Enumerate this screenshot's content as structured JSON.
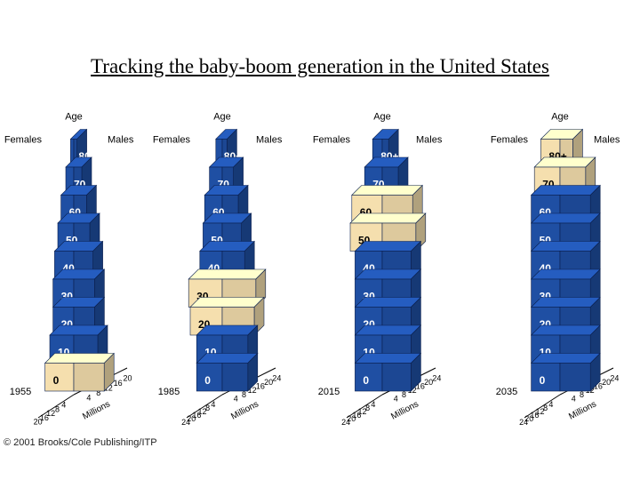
{
  "title": "Tracking the baby-boom generation in the United States",
  "credit": "© 2001 Brooks/Cole Publishing/ITP",
  "labels": {
    "age": "Age",
    "females": "Females",
    "males": "Males",
    "millions": "Millions"
  },
  "colors": {
    "population": "#1f4fa3",
    "baby_boom": "#f5dfae"
  },
  "chart_data": [
    {
      "type": "bar",
      "subtype": "population-pyramid",
      "year": "1955",
      "age_labels": [
        "0",
        "10",
        "20",
        "30",
        "40",
        "50",
        "60",
        "70",
        "80+"
      ],
      "female_axis_ticks": [
        20,
        16,
        12,
        8,
        4
      ],
      "male_axis_ticks": [
        4,
        8,
        12,
        16,
        20
      ],
      "xmax": 20,
      "females": [
        9,
        7.5,
        6.5,
        6.5,
        6,
        5,
        4,
        2.5,
        1
      ],
      "males": [
        9.5,
        7.5,
        6.5,
        6.5,
        6,
        5,
        4,
        2.5,
        1
      ],
      "baby_boom": [
        true,
        false,
        false,
        false,
        false,
        false,
        false,
        false,
        false
      ]
    },
    {
      "type": "bar",
      "subtype": "population-pyramid",
      "year": "1985",
      "age_labels": [
        "0",
        "10",
        "20",
        "30",
        "40",
        "50",
        "60",
        "70",
        "80+"
      ],
      "female_axis_ticks": [
        24,
        20,
        16,
        12,
        8,
        4
      ],
      "male_axis_ticks": [
        4,
        8,
        12,
        16,
        20,
        24
      ],
      "xmax": 24,
      "females": [
        8,
        8,
        10,
        10.5,
        7,
        6,
        5.5,
        4,
        2
      ],
      "males": [
        8,
        8,
        10,
        10.5,
        7,
        6,
        5,
        3.5,
        1.5
      ],
      "baby_boom": [
        false,
        false,
        true,
        true,
        false,
        false,
        false,
        false,
        false
      ]
    },
    {
      "type": "bar",
      "subtype": "population-pyramid",
      "year": "2015",
      "age_labels": [
        "0",
        "10",
        "20",
        "30",
        "40",
        "50",
        "60",
        "70",
        "80+"
      ],
      "female_axis_ticks": [
        24,
        20,
        16,
        12,
        8,
        4
      ],
      "male_axis_ticks": [
        4,
        8,
        12,
        16,
        20,
        24
      ],
      "xmax": 24,
      "females": [
        8.5,
        8.5,
        8.5,
        8.5,
        8.5,
        10,
        9.5,
        5.5,
        3
      ],
      "males": [
        9,
        9,
        9,
        9,
        9,
        10.5,
        9.5,
        5,
        2
      ],
      "baby_boom": [
        false,
        false,
        false,
        false,
        false,
        true,
        true,
        false,
        false
      ]
    },
    {
      "type": "bar",
      "subtype": "population-pyramid",
      "year": "2035",
      "age_labels": [
        "0",
        "10",
        "20",
        "30",
        "40",
        "50",
        "60",
        "70",
        "80+"
      ],
      "female_axis_ticks": [
        24,
        20,
        16,
        12,
        8,
        4
      ],
      "male_axis_ticks": [
        4,
        8,
        12,
        16,
        20,
        24
      ],
      "xmax": 24,
      "females": [
        9,
        9,
        9,
        9,
        9,
        9,
        9,
        8,
        6
      ],
      "males": [
        9.5,
        9.5,
        9.5,
        9.5,
        9.5,
        9.5,
        9.5,
        8,
        4
      ],
      "baby_boom": [
        false,
        false,
        false,
        false,
        false,
        false,
        false,
        true,
        true
      ]
    }
  ]
}
